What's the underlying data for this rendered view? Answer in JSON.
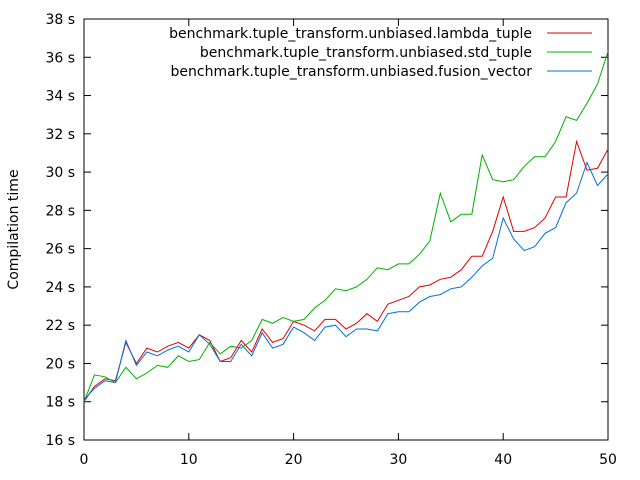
{
  "chart_data": {
    "type": "line",
    "title": "",
    "xlabel": "",
    "ylabel": "Compilation time",
    "xlim": [
      0,
      50
    ],
    "ylim": [
      16,
      38
    ],
    "xticks": [
      0,
      10,
      20,
      30,
      40,
      50
    ],
    "yticks": [
      {
        "value": 16,
        "label": "16 s"
      },
      {
        "value": 18,
        "label": "18 s"
      },
      {
        "value": 20,
        "label": "20 s"
      },
      {
        "value": 22,
        "label": "22 s"
      },
      {
        "value": 24,
        "label": "24 s"
      },
      {
        "value": 26,
        "label": "26 s"
      },
      {
        "value": 28,
        "label": "28 s"
      },
      {
        "value": 30,
        "label": "30 s"
      },
      {
        "value": 32,
        "label": "32 s"
      },
      {
        "value": 34,
        "label": "34 s"
      },
      {
        "value": 36,
        "label": "36 s"
      },
      {
        "value": 38,
        "label": "38 s"
      }
    ],
    "grid": false,
    "legend_position": "top-right",
    "x": [
      0,
      1,
      2,
      3,
      4,
      5,
      6,
      7,
      8,
      9,
      10,
      11,
      12,
      13,
      14,
      15,
      16,
      17,
      18,
      19,
      20,
      21,
      22,
      23,
      24,
      25,
      26,
      27,
      28,
      29,
      30,
      31,
      32,
      33,
      34,
      35,
      36,
      37,
      38,
      39,
      40,
      41,
      42,
      43,
      44,
      45,
      46,
      47,
      48,
      49,
      50
    ],
    "series": [
      {
        "name": "benchmark.tuple_transform.unbiased.lambda_tuple",
        "color": "#e00000",
        "values": [
          18.0,
          18.8,
          19.2,
          19.1,
          21.1,
          20.0,
          20.8,
          20.6,
          20.9,
          21.1,
          20.8,
          21.5,
          21.2,
          20.1,
          20.3,
          21.2,
          20.6,
          21.8,
          21.1,
          21.3,
          22.2,
          22.0,
          21.7,
          22.3,
          22.3,
          21.8,
          22.1,
          22.6,
          22.2,
          23.1,
          23.3,
          23.5,
          24.0,
          24.1,
          24.4,
          24.5,
          24.9,
          25.6,
          25.6,
          26.9,
          28.7,
          26.9,
          26.9,
          27.1,
          27.6,
          28.7,
          28.7,
          31.6,
          30.1,
          30.2,
          31.2
        ]
      },
      {
        "name": "benchmark.tuple_transform.unbiased.std_tuple",
        "color": "#00b000",
        "values": [
          18.0,
          19.4,
          19.3,
          19.0,
          19.8,
          19.2,
          19.5,
          19.9,
          19.8,
          20.4,
          20.1,
          20.2,
          21.1,
          20.5,
          20.9,
          20.8,
          21.2,
          22.3,
          22.1,
          22.4,
          22.2,
          22.3,
          22.9,
          23.3,
          23.9,
          23.8,
          24.0,
          24.4,
          25.0,
          24.9,
          25.2,
          25.2,
          25.7,
          26.4,
          28.9,
          27.4,
          27.8,
          27.8,
          30.9,
          29.6,
          29.5,
          29.6,
          30.3,
          30.8,
          30.8,
          31.6,
          32.9,
          32.7,
          33.6,
          34.6,
          36.3
        ]
      },
      {
        "name": "benchmark.tuple_transform.unbiased.fusion_vector",
        "color": "#0070e0",
        "values": [
          18.1,
          18.7,
          19.1,
          19.0,
          21.2,
          19.9,
          20.6,
          20.4,
          20.7,
          20.9,
          20.6,
          21.5,
          21.0,
          20.1,
          20.1,
          21.0,
          20.4,
          21.6,
          20.8,
          21.0,
          21.9,
          21.6,
          21.2,
          21.9,
          22.0,
          21.4,
          21.8,
          21.8,
          21.7,
          22.6,
          22.7,
          22.7,
          23.2,
          23.5,
          23.6,
          23.9,
          24.0,
          24.5,
          25.1,
          25.5,
          27.6,
          26.5,
          25.9,
          26.1,
          26.8,
          27.1,
          28.4,
          28.9,
          30.5,
          29.3,
          29.9
        ]
      }
    ]
  }
}
